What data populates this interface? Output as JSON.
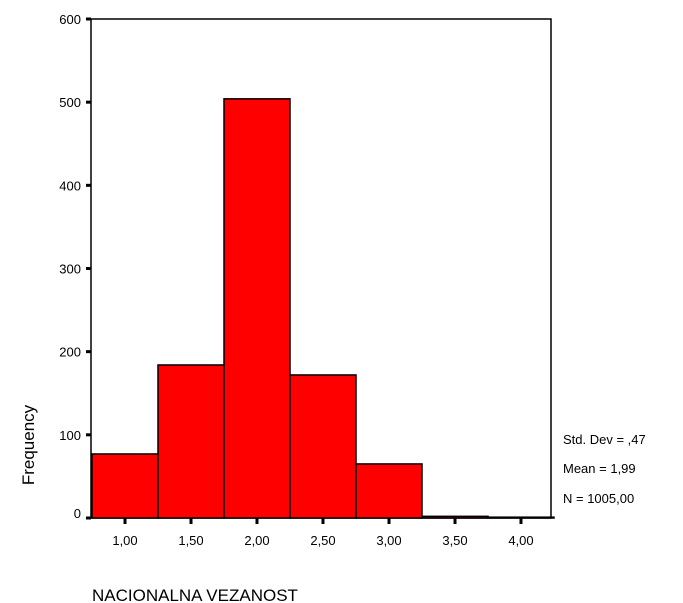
{
  "chart_data": {
    "type": "bar",
    "title": "",
    "xlabel": "NACIONALNA VEZANOST",
    "ylabel": "Frequency",
    "categories": [
      "1,00",
      "1,50",
      "2,00",
      "2,50",
      "3,00",
      "3,50",
      "4,00"
    ],
    "values": [
      77,
      184,
      504,
      172,
      65,
      2,
      1
    ],
    "ylim": [
      0,
      600
    ],
    "yticks": [
      "0",
      "100",
      "200",
      "300",
      "400",
      "500",
      "600"
    ],
    "grid": false,
    "bar_color": "#ff0000",
    "stats": {
      "std_dev": "Std. Dev = ,47",
      "mean": "Mean = 1,99",
      "n": "N = 1005,00"
    }
  }
}
